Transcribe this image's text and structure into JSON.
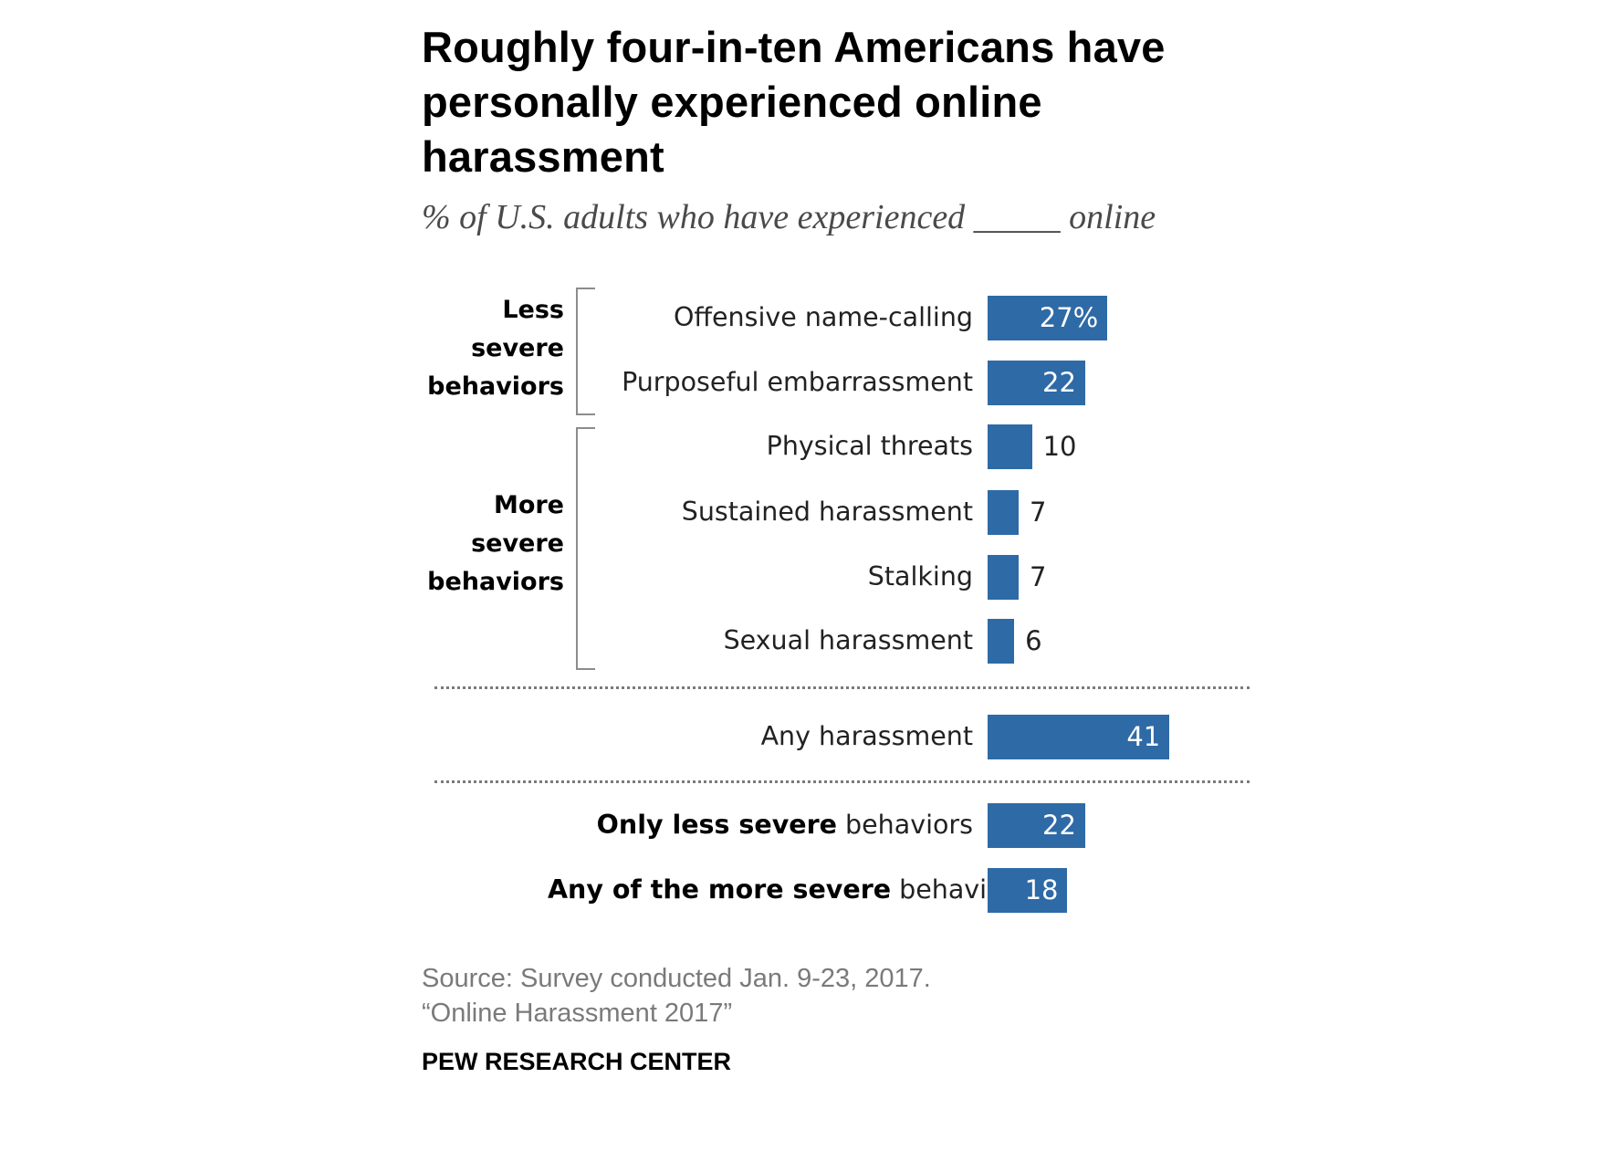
{
  "title": "Roughly four-in-ten Americans have personally experienced online harassment",
  "subtitle": "% of U.S. adults who have experienced _____ online",
  "groups": [
    {
      "lines": [
        "Less",
        "severe",
        "behaviors"
      ]
    },
    {
      "lines": [
        "More",
        "severe",
        "behaviors"
      ]
    }
  ],
  "chart_data": {
    "type": "bar",
    "orientation": "horizontal",
    "unit": "%",
    "xlim": [
      0,
      100
    ],
    "bar_color": "#2e6aa6",
    "bars": [
      {
        "label": "Offensive name-calling",
        "value": 27,
        "display": "27%",
        "group": "Less severe behaviors"
      },
      {
        "label": "Purposeful embarrassment",
        "value": 22,
        "display": "22",
        "group": "Less severe behaviors"
      },
      {
        "label": "Physical threats",
        "value": 10,
        "display": "10",
        "group": "More severe behaviors"
      },
      {
        "label": "Sustained harassment",
        "value": 7,
        "display": "7",
        "group": "More severe behaviors"
      },
      {
        "label": "Stalking",
        "value": 7,
        "display": "7",
        "group": "More severe behaviors"
      },
      {
        "label": "Sexual harassment",
        "value": 6,
        "display": "6",
        "group": "More severe behaviors"
      },
      {
        "label": "Any harassment",
        "value": 41,
        "display": "41"
      },
      {
        "label_bold": "Only less severe",
        "label_rest": " behaviors",
        "value": 22,
        "display": "22"
      },
      {
        "label_bold": "Any of the more severe",
        "label_rest": " behaviors",
        "value": 18,
        "display": "18"
      }
    ]
  },
  "source_line1": "Source: Survey conducted Jan. 9-23, 2017.",
  "source_line2": "“Online Harassment 2017”",
  "brand": "PEW RESEARCH CENTER"
}
